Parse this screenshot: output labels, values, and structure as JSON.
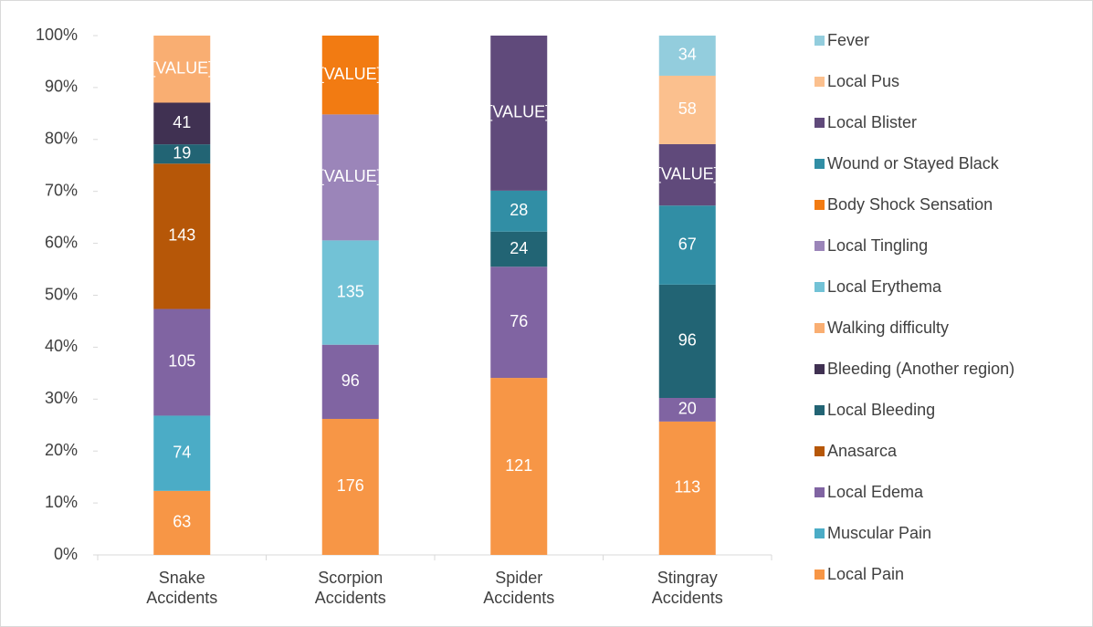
{
  "chart_data": {
    "type": "stacked_bar_100",
    "categories": [
      "Snake Accidents",
      "Scorpion Accidents",
      "Spider Accidents",
      "Stingray Accidents"
    ],
    "ylim": [
      0,
      100
    ],
    "yticks": [
      {
        "value": 0,
        "label": "0%"
      },
      {
        "value": 10,
        "label": "10%"
      },
      {
        "value": 20,
        "label": "20%"
      },
      {
        "value": 30,
        "label": "30%"
      },
      {
        "value": 40,
        "label": "40%"
      },
      {
        "value": 50,
        "label": "50%"
      },
      {
        "value": 60,
        "label": "60%"
      },
      {
        "value": 70,
        "label": "70%"
      },
      {
        "value": 80,
        "label": "80%"
      },
      {
        "value": 90,
        "label": "90%"
      },
      {
        "value": 100,
        "label": "100%"
      }
    ],
    "legend": "right",
    "series": [
      {
        "name": "Local Pain",
        "color": "#f79646",
        "values": [
          63,
          176,
          121,
          113
        ]
      },
      {
        "name": "Muscular Pain",
        "color": "#4bacc6",
        "values": [
          74,
          null,
          null,
          null
        ]
      },
      {
        "name": "Local Edema",
        "color": "#8064a2",
        "values": [
          105,
          96,
          76,
          20
        ]
      },
      {
        "name": "Anasarca",
        "color": "#b65708",
        "values": [
          143,
          null,
          null,
          null
        ]
      },
      {
        "name": "Local Bleeding",
        "color": "#226474",
        "values": [
          19,
          null,
          24,
          96
        ]
      },
      {
        "name": "Bleeding (Another region)",
        "color": "#403152",
        "values": [
          41,
          null,
          null,
          null
        ]
      },
      {
        "name": "Walking difficulty",
        "color": "#f9ae72",
        "values": [
          66,
          null,
          null,
          null
        ],
        "value_labels": [
          "[VALUE]",
          null,
          null,
          null
        ]
      },
      {
        "name": "Local Erythema",
        "color": "#72c2d6",
        "values": [
          null,
          135,
          null,
          null
        ]
      },
      {
        "name": "Local Tingling",
        "color": "#9b85b9",
        "values": [
          null,
          163,
          null,
          null
        ],
        "value_labels": [
          null,
          "[VALUE]",
          null,
          null
        ]
      },
      {
        "name": "Body Shock Sensation",
        "color": "#f27b12",
        "values": [
          null,
          102,
          null,
          null
        ],
        "value_labels": [
          null,
          "[VALUE]",
          null,
          null
        ]
      },
      {
        "name": "Wound or Stayed Black",
        "color": "#318ea5",
        "values": [
          null,
          null,
          28,
          67
        ]
      },
      {
        "name": "Local Blister",
        "color": "#604a7b",
        "values": [
          null,
          null,
          106,
          52
        ],
        "value_labels": [
          null,
          null,
          "[VALUE]",
          "[VALUE]"
        ]
      },
      {
        "name": "Local Pus",
        "color": "#fbc08e",
        "values": [
          null,
          null,
          null,
          58
        ]
      },
      {
        "name": "Fever",
        "color": "#93cddd",
        "values": [
          null,
          null,
          null,
          34
        ]
      }
    ]
  }
}
